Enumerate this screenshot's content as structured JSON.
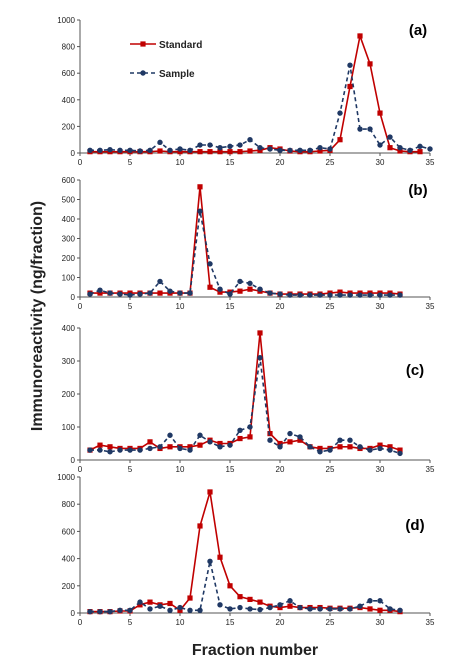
{
  "figure": {
    "ylabel": "Immunoreactivity (ng/fraction)",
    "xlabel": "Fraction number",
    "legend": {
      "standard_label": "Standard",
      "sample_label": "Sample"
    }
  },
  "colors": {
    "standard": "#c00000",
    "sample": "#1f3864"
  },
  "chart_data": [
    {
      "type": "line",
      "panel_label": "(a)",
      "xlim": [
        0,
        35
      ],
      "ylim": [
        0,
        1000
      ],
      "xticks": [
        0,
        5,
        10,
        15,
        20,
        25,
        30,
        35
      ],
      "yticks": [
        0,
        200,
        400,
        600,
        800,
        1000
      ],
      "legend_position": "top-left",
      "series": [
        {
          "name": "Standard",
          "x": [
            1,
            2,
            3,
            4,
            5,
            6,
            7,
            8,
            9,
            10,
            11,
            12,
            13,
            14,
            15,
            16,
            17,
            18,
            19,
            20,
            21,
            22,
            23,
            24,
            25,
            26,
            27,
            28,
            29,
            30,
            31,
            32,
            33,
            34
          ],
          "y": [
            10,
            10,
            10,
            10,
            10,
            10,
            10,
            15,
            10,
            10,
            10,
            10,
            10,
            10,
            10,
            10,
            15,
            20,
            40,
            30,
            15,
            10,
            10,
            15,
            20,
            100,
            500,
            880,
            670,
            300,
            40,
            15,
            10,
            10
          ]
        },
        {
          "name": "Sample",
          "x": [
            1,
            2,
            3,
            4,
            5,
            6,
            7,
            8,
            9,
            10,
            11,
            12,
            13,
            14,
            15,
            16,
            17,
            18,
            19,
            20,
            21,
            22,
            23,
            24,
            25,
            26,
            27,
            28,
            29,
            30,
            31,
            32,
            33,
            34,
            35
          ],
          "y": [
            20,
            20,
            25,
            20,
            20,
            15,
            20,
            80,
            20,
            30,
            20,
            60,
            60,
            40,
            50,
            60,
            100,
            40,
            30,
            20,
            20,
            20,
            20,
            40,
            30,
            300,
            660,
            180,
            180,
            60,
            120,
            40,
            20,
            50,
            30
          ]
        }
      ]
    },
    {
      "type": "line",
      "panel_label": "(b)",
      "xlim": [
        0,
        35
      ],
      "ylim": [
        0,
        600
      ],
      "xticks": [
        0,
        5,
        10,
        15,
        20,
        25,
        30,
        35
      ],
      "yticks": [
        0,
        100,
        200,
        300,
        400,
        500,
        600
      ],
      "series": [
        {
          "name": "Standard",
          "x": [
            1,
            2,
            3,
            4,
            5,
            6,
            7,
            8,
            9,
            10,
            11,
            12,
            13,
            14,
            15,
            16,
            17,
            18,
            19,
            20,
            21,
            22,
            23,
            24,
            25,
            26,
            27,
            28,
            29,
            30,
            31,
            32
          ],
          "y": [
            20,
            20,
            20,
            20,
            20,
            20,
            20,
            20,
            20,
            20,
            20,
            565,
            50,
            25,
            25,
            30,
            40,
            30,
            20,
            15,
            15,
            15,
            15,
            15,
            20,
            25,
            20,
            20,
            20,
            20,
            20,
            15
          ]
        },
        {
          "name": "Sample",
          "x": [
            1,
            2,
            3,
            4,
            5,
            6,
            7,
            8,
            9,
            10,
            11,
            12,
            13,
            14,
            15,
            16,
            17,
            18,
            19,
            20,
            21,
            22,
            23,
            24,
            25,
            26,
            27,
            28,
            29,
            30,
            31,
            32
          ],
          "y": [
            15,
            35,
            20,
            15,
            10,
            15,
            20,
            80,
            30,
            20,
            20,
            440,
            170,
            40,
            15,
            80,
            70,
            40,
            20,
            15,
            10,
            10,
            10,
            10,
            10,
            10,
            10,
            10,
            10,
            10,
            10,
            10
          ]
        }
      ]
    },
    {
      "type": "line",
      "panel_label": "(c)",
      "xlim": [
        0,
        35
      ],
      "ylim": [
        0,
        400
      ],
      "xticks": [
        0,
        5,
        10,
        15,
        20,
        25,
        30,
        35
      ],
      "yticks": [
        0,
        100,
        200,
        300,
        400
      ],
      "series": [
        {
          "name": "Standard",
          "x": [
            1,
            2,
            3,
            4,
            5,
            6,
            7,
            8,
            9,
            10,
            11,
            12,
            13,
            14,
            15,
            16,
            17,
            18,
            19,
            20,
            21,
            22,
            23,
            24,
            25,
            26,
            27,
            28,
            29,
            30,
            31,
            32
          ],
          "y": [
            30,
            45,
            40,
            35,
            35,
            35,
            55,
            35,
            40,
            40,
            40,
            45,
            60,
            50,
            50,
            65,
            70,
            385,
            80,
            50,
            55,
            60,
            40,
            35,
            35,
            40,
            40,
            35,
            35,
            45,
            40,
            30
          ]
        },
        {
          "name": "Sample",
          "x": [
            1,
            2,
            3,
            4,
            5,
            6,
            7,
            8,
            9,
            10,
            11,
            12,
            13,
            14,
            15,
            16,
            17,
            18,
            19,
            20,
            21,
            22,
            23,
            24,
            25,
            26,
            27,
            28,
            29,
            30,
            31,
            32
          ],
          "y": [
            30,
            30,
            25,
            30,
            30,
            30,
            35,
            40,
            75,
            35,
            30,
            75,
            55,
            40,
            45,
            90,
            100,
            310,
            60,
            40,
            80,
            70,
            40,
            25,
            30,
            60,
            60,
            40,
            30,
            35,
            30,
            20
          ]
        }
      ]
    },
    {
      "type": "line",
      "panel_label": "(d)",
      "xlim": [
        0,
        35
      ],
      "ylim": [
        0,
        1000
      ],
      "xticks": [
        0,
        5,
        10,
        15,
        20,
        25,
        30,
        35
      ],
      "yticks": [
        0,
        200,
        400,
        600,
        800,
        1000
      ],
      "series": [
        {
          "name": "Standard",
          "x": [
            1,
            2,
            3,
            4,
            5,
            6,
            7,
            8,
            9,
            10,
            11,
            12,
            13,
            14,
            15,
            16,
            17,
            18,
            19,
            20,
            21,
            22,
            23,
            24,
            25,
            26,
            27,
            28,
            29,
            30,
            31,
            32
          ],
          "y": [
            10,
            10,
            10,
            15,
            15,
            60,
            80,
            60,
            70,
            20,
            110,
            640,
            890,
            410,
            200,
            120,
            100,
            80,
            50,
            40,
            50,
            40,
            40,
            40,
            35,
            35,
            35,
            40,
            30,
            20,
            20,
            10
          ]
        },
        {
          "name": "Sample",
          "x": [
            1,
            2,
            3,
            4,
            5,
            6,
            7,
            8,
            9,
            10,
            11,
            12,
            13,
            14,
            15,
            16,
            17,
            18,
            19,
            20,
            21,
            22,
            23,
            24,
            25,
            26,
            27,
            28,
            29,
            30,
            31,
            32
          ],
          "y": [
            10,
            10,
            10,
            20,
            20,
            80,
            30,
            50,
            20,
            40,
            20,
            20,
            380,
            60,
            30,
            40,
            30,
            25,
            40,
            60,
            90,
            40,
            30,
            30,
            30,
            30,
            30,
            50,
            90,
            90,
            30,
            20
          ]
        }
      ]
    }
  ]
}
